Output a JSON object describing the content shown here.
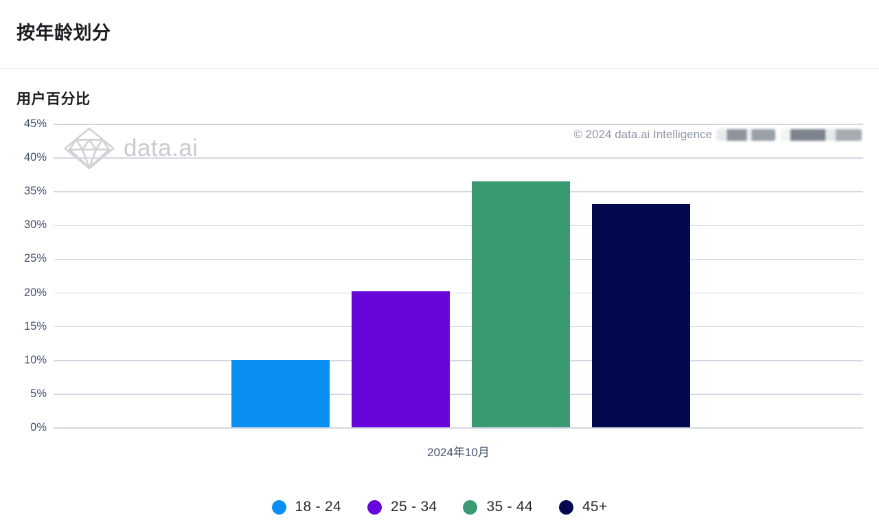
{
  "page": {
    "title": "按年龄划分",
    "subtitle": "用户百分比"
  },
  "watermark": {
    "logo_text": "data.ai",
    "copyright": "© 2024 data.ai Intelligence"
  },
  "chart_data": {
    "type": "bar",
    "title": "按年龄划分",
    "ylabel": "用户百分比",
    "xlabel": "",
    "categories": [
      "2024年10月"
    ],
    "series": [
      {
        "name": "18 - 24",
        "color": "#0990F2",
        "values": [
          10.0
        ]
      },
      {
        "name": "25 - 34",
        "color": "#6606D9",
        "values": [
          20.2
        ]
      },
      {
        "name": "35 - 44",
        "color": "#3C9A72",
        "values": [
          36.4
        ]
      },
      {
        "name": "45+",
        "color": "#04084E",
        "values": [
          33.1
        ]
      }
    ],
    "ylim": [
      0,
      45
    ],
    "ytick_step": 5,
    "ytick_suffix": "%",
    "grid": true,
    "legend_position": "bottom"
  }
}
